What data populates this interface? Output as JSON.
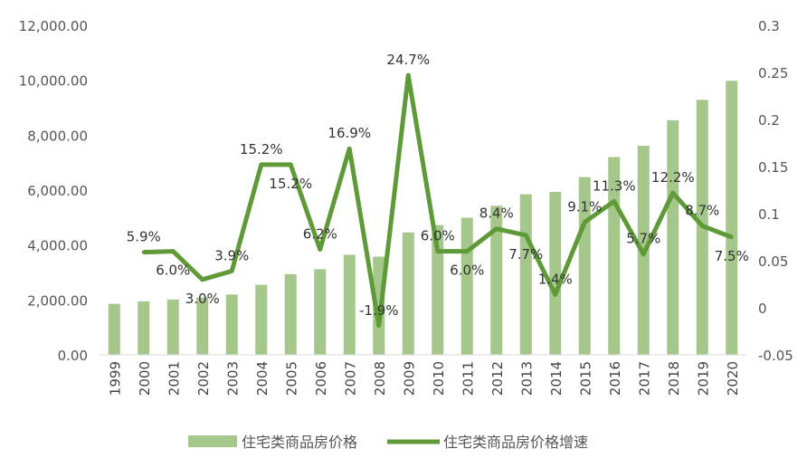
{
  "chart_data": {
    "type": "bar+line",
    "categories": [
      "1999",
      "2000",
      "2001",
      "2002",
      "2003",
      "2004",
      "2005",
      "2006",
      "2007",
      "2008",
      "2009",
      "2010",
      "2011",
      "2012",
      "2013",
      "2014",
      "2015",
      "2016",
      "2017",
      "2018",
      "2019",
      "2020"
    ],
    "series": [
      {
        "name": "住宅类商品房价格",
        "type": "bar",
        "axis": "left",
        "color": "#a6c78c",
        "values": [
          1857,
          1948,
          2017,
          2092,
          2197,
          2549,
          2937,
          3119,
          3645,
          3576,
          4459,
          4725,
          4993,
          5430,
          5850,
          5933,
          6473,
          7203,
          7614,
          8544,
          9287,
          9980
        ]
      },
      {
        "name": "住宅类商品房价格增速",
        "type": "line",
        "axis": "right",
        "color": "#5e9a38",
        "values": [
          null,
          0.059,
          0.06,
          0.03,
          0.039,
          0.152,
          0.152,
          0.062,
          0.169,
          -0.019,
          0.247,
          0.06,
          0.06,
          0.084,
          0.077,
          0.014,
          0.091,
          0.113,
          0.057,
          0.122,
          0.087,
          0.075
        ],
        "labels": [
          "",
          "5.9%",
          "6.0%",
          "3.0%",
          "3.9%",
          "15.2%",
          "15.2%",
          "6.2%",
          "16.9%",
          "-1.9%",
          "24.7%",
          "6.0%",
          "6.0%",
          "8.4%",
          "7.7%",
          "1.4%",
          "9.1%",
          "11.3%",
          "5.7%",
          "12.2%",
          "8.7%",
          "7.5%"
        ]
      }
    ],
    "left_axis": {
      "range": [
        0,
        12000
      ],
      "ticks": [
        "0.00",
        "2,000.00",
        "4,000.00",
        "6,000.00",
        "8,000.00",
        "10,000.00",
        "12,000.00"
      ]
    },
    "right_axis": {
      "range": [
        -0.05,
        0.3
      ],
      "ticks": [
        "-0.05",
        "0",
        "0.05",
        "0.1",
        "0.15",
        "0.2",
        "0.25",
        "0.3"
      ]
    },
    "grid": false,
    "legend": "bottom"
  }
}
